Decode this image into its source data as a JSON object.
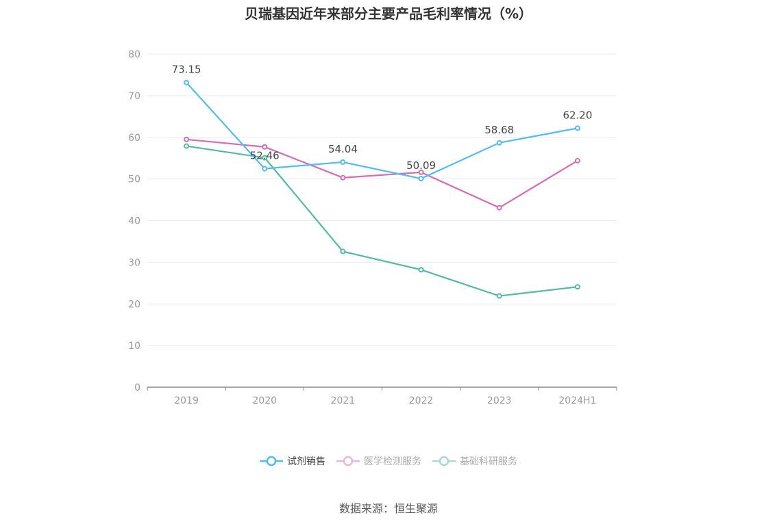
{
  "chart_data": {
    "type": "line",
    "title": "贝瑞基因近年来部分主要产品毛利率情况（%）",
    "categories": [
      "2019",
      "2020",
      "2021",
      "2022",
      "2023",
      "2024H1"
    ],
    "ylim": [
      0,
      80
    ],
    "yticks": [
      0,
      10,
      20,
      30,
      40,
      50,
      60,
      70,
      80
    ],
    "grid": true,
    "legend_position": "bottom",
    "series": [
      {
        "name": "试剂销售",
        "color": "#4fbdf5",
        "values": [
          73.15,
          52.46,
          54.04,
          50.09,
          58.68,
          62.2
        ],
        "labels": [
          "73.15",
          "52.46",
          "54.04",
          "50.09",
          "58.68",
          "62.20"
        ],
        "legend_active": true
      },
      {
        "name": "医学检测服务",
        "color": "#d96bb5",
        "values": [
          59.5,
          57.7,
          50.3,
          51.6,
          43.1,
          54.4
        ],
        "legend_active": false
      },
      {
        "name": "基础科研服务",
        "color": "#4fbba0",
        "values": [
          57.9,
          55.1,
          32.6,
          28.2,
          21.9,
          24.1
        ],
        "legend_active": false
      }
    ]
  },
  "source": "数据来源：恒生聚源"
}
